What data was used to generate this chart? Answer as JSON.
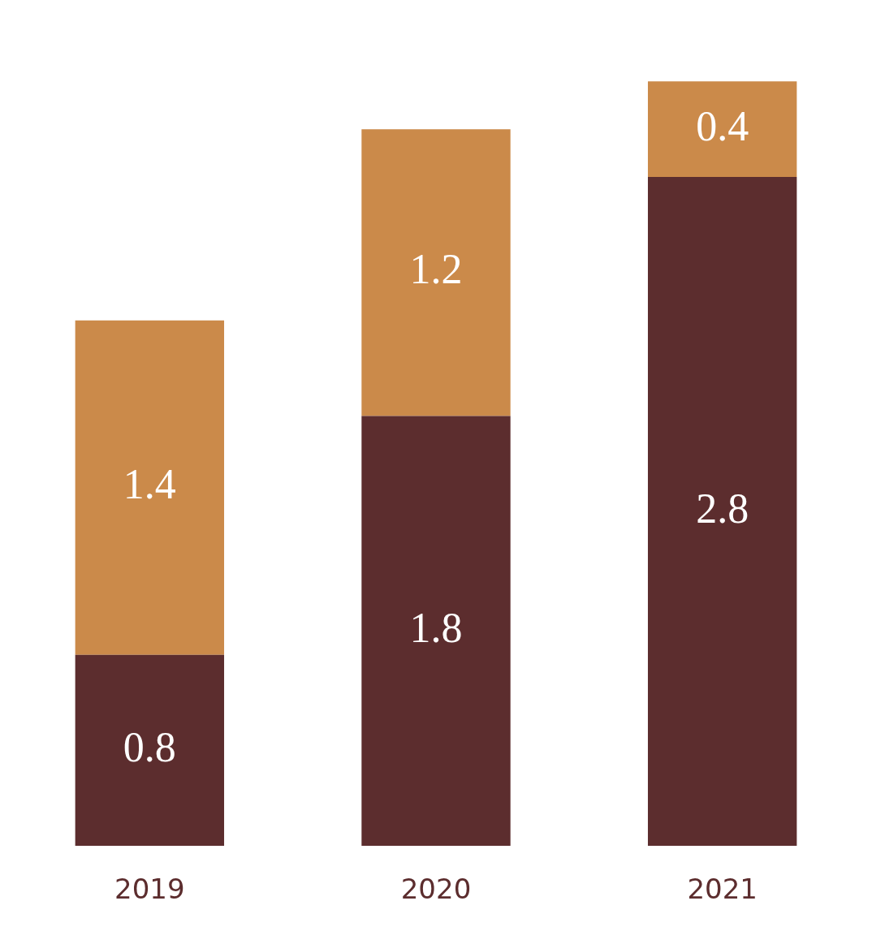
{
  "chart_data": {
    "type": "bar",
    "stacked": true,
    "data_labels": true,
    "grid": false,
    "legend": false,
    "tick_labels": "x",
    "categories": [
      "2019",
      "2020",
      "2021"
    ],
    "series": [
      {
        "color": "#5c2d2e",
        "values": [
          0.8,
          1.8,
          2.8
        ]
      },
      {
        "color": "#cb8a4a",
        "values": [
          1.4,
          1.2,
          0.4
        ]
      }
    ]
  }
}
